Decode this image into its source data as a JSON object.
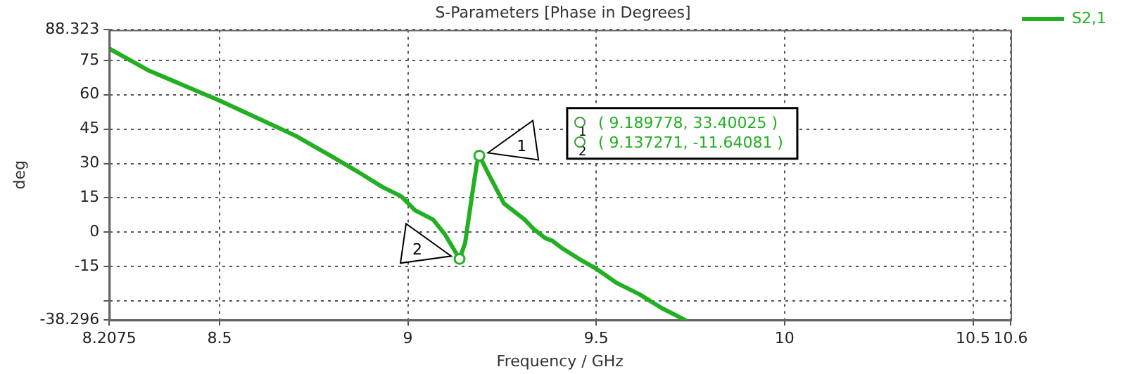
{
  "chart_data": {
    "type": "line",
    "title": "S-Parameters [Phase in Degrees]",
    "xlabel": "Frequency / GHz",
    "ylabel": "deg",
    "x": [
      8.2075,
      8.313,
      8.386,
      8.502,
      8.617,
      8.702,
      8.8,
      8.873,
      8.933,
      8.982,
      9.019,
      9.067,
      9.097,
      9.137271,
      9.152,
      9.17,
      9.183,
      9.189778,
      9.213,
      9.255,
      9.31,
      9.334,
      9.365,
      9.383,
      9.407,
      9.456,
      9.5,
      9.553,
      9.614,
      9.674,
      9.735
    ],
    "series": [
      {
        "name": "S2,1",
        "color": "#22b022",
        "values": [
          80.1,
          70.5,
          65.4,
          57.3,
          48.6,
          42.1,
          32.9,
          25.8,
          19.7,
          15.7,
          9.6,
          5.5,
          -0.6,
          -11.64081,
          -4.7,
          15.7,
          29.9,
          33.40025,
          25.8,
          12.6,
          5.5,
          1.4,
          -2.6,
          -3.7,
          -6.7,
          -11.8,
          -15.9,
          -22,
          -27,
          -33.1,
          -38.2
        ]
      }
    ],
    "xlim": [
      8.2075,
      10.6
    ],
    "xticks": [
      8.2075,
      8.5,
      9,
      9.5,
      10,
      10.5,
      10.6
    ],
    "ylim": [
      -38.296,
      88.323
    ],
    "yticks": [
      -38.296,
      {
        "value": -30,
        "label": null
      },
      -15,
      0,
      15,
      30,
      45,
      60,
      75,
      88.323
    ],
    "grid": true,
    "legend": "right",
    "marker": "none",
    "line_style": "solid",
    "annotations": [
      {
        "text": "1",
        "x": 9.189778,
        "y": 33.40025
      },
      {
        "text": "2",
        "x": 9.137271,
        "y": -11.64081
      },
      "( 9.189778, 33.40025 )",
      "( 9.137271, -11.64081 )"
    ]
  }
}
